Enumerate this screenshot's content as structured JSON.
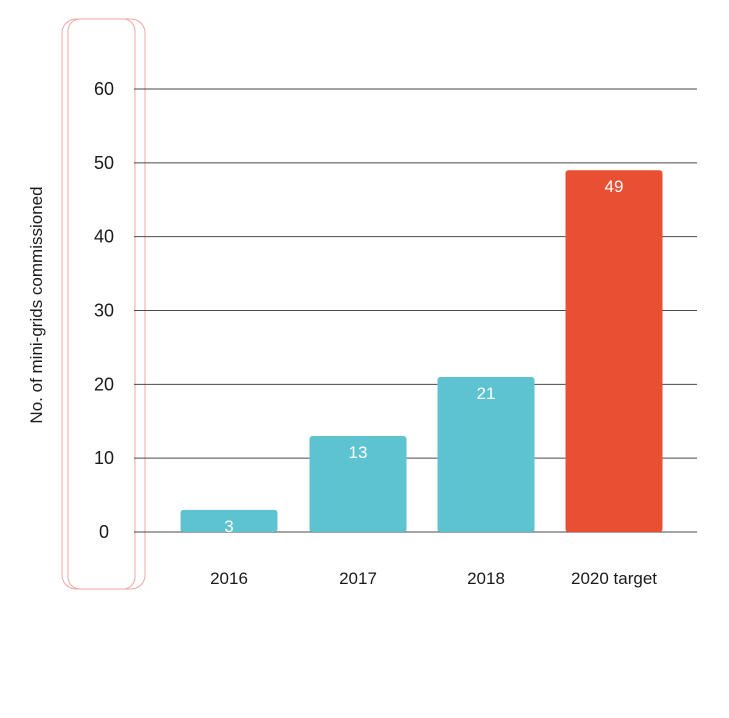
{
  "chart_data": {
    "type": "bar",
    "categories": [
      "2016",
      "2017",
      "2018",
      "2020 target"
    ],
    "values": [
      3,
      13,
      21,
      49
    ],
    "data_labels": [
      "3",
      "13",
      "21",
      "49"
    ],
    "title": "",
    "xlabel": "",
    "ylabel": "No. of mini-grids commissioned",
    "ylim": [
      0,
      60
    ],
    "yticks": [
      0,
      10,
      20,
      30,
      40,
      50,
      60
    ],
    "ytick_labels": [
      "0",
      "10",
      "20",
      "30",
      "40",
      "50",
      "60"
    ],
    "grid": true,
    "legend": "none",
    "colors": {
      "actual": "#5ec3d0",
      "target": "#e84f33",
      "text": "#1a1a1a",
      "gridline": "#4a4a4a",
      "frame": "#f0a7a0"
    },
    "bar_color_keys": [
      "actual",
      "actual",
      "actual",
      "target"
    ]
  }
}
